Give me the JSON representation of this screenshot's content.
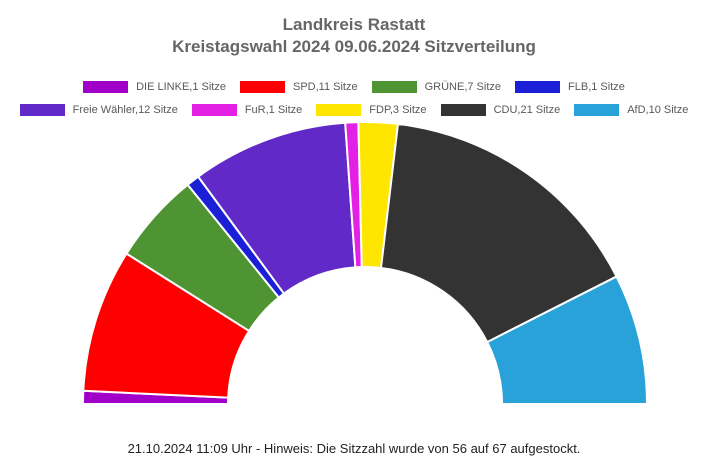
{
  "header": {
    "title_line1": "Landkreis Rastatt",
    "title_line2": "Kreistagswahl 2024 09.06.2024 Sitzverteilung"
  },
  "footer": {
    "note": "21.10.2024 11:09 Uhr - Hinweis: Die Sitzzahl wurde von 56 auf 67 aufgestockt."
  },
  "chart_data": {
    "type": "pie",
    "variant": "semicircle-donut",
    "title": "Landkreis Rastatt",
    "subtitle": "Kreistagswahl 2024 09.06.2024 Sitzverteilung",
    "unit": "Sitze",
    "total_seats": 67,
    "start_angle_deg": 180,
    "end_angle_deg": 0,
    "legend_position": "top",
    "slice_border_color": "#ffffff",
    "series": [
      {
        "name": "DIE LINKE",
        "seats": 1,
        "color": "#a000c8",
        "legend_label": "DIE LINKE,1 Sitze"
      },
      {
        "name": "SPD",
        "seats": 11,
        "color": "#ff0000",
        "legend_label": "SPD,11 Sitze"
      },
      {
        "name": "GRÜNE",
        "seats": 7,
        "color": "#4f9433",
        "legend_label": "GRÜNE,7 Sitze"
      },
      {
        "name": "FLB",
        "seats": 1,
        "color": "#1b1fd6",
        "legend_label": "FLB,1 Sitze"
      },
      {
        "name": "Freie Wähler",
        "seats": 12,
        "color": "#6129c8",
        "legend_label": "Freie Wähler,12 Sitze"
      },
      {
        "name": "FuR",
        "seats": 1,
        "color": "#e520e5",
        "legend_label": "FuR,1 Sitze"
      },
      {
        "name": "FDP",
        "seats": 3,
        "color": "#ffe600",
        "legend_label": "FDP,3 Sitze"
      },
      {
        "name": "CDU",
        "seats": 21,
        "color": "#333333",
        "legend_label": "CDU,21 Sitze"
      },
      {
        "name": "AfD",
        "seats": 10,
        "color": "#29a2da",
        "legend_label": "AfD,10 Sitze"
      }
    ],
    "legend_rows": [
      [
        "DIE LINKE",
        "SPD",
        "GRÜNE",
        "FLB"
      ],
      [
        "Freie Wähler",
        "FuR",
        "FDP",
        "CDU",
        "AfD"
      ]
    ]
  }
}
